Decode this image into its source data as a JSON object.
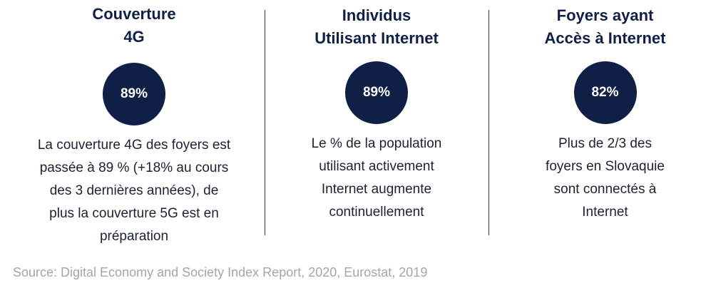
{
  "columns": [
    {
      "title_lines": [
        "Couverture",
        "4G"
      ],
      "value": "89%",
      "description_lines": [
        "La couverture 4G des foyers est",
        "passée à 89 % (+18% au cours",
        "des 3 dernières années), de",
        "plus la couverture 5G est en",
        "préparation"
      ]
    },
    {
      "title_lines": [
        "Individus",
        "Utilisant Internet"
      ],
      "value": "89%",
      "description_lines": [
        "Le % de la population",
        "utilisant activement",
        "Internet augmente",
        "continuellement"
      ]
    },
    {
      "title_lines": [
        "Foyers ayant",
        "Accès à Internet"
      ],
      "value": "82%",
      "description_lines": [
        "Plus de 2/3 des",
        "foyers en Slovaquie",
        "sont connectés à",
        "Internet"
      ]
    }
  ],
  "source": "Source: Digital Economy and Society Index Report, 2020, Eurostat, 2019",
  "colors": {
    "navy": "#0f1f45",
    "text": "#1b2230",
    "source_gray": "#a6a6a6"
  }
}
